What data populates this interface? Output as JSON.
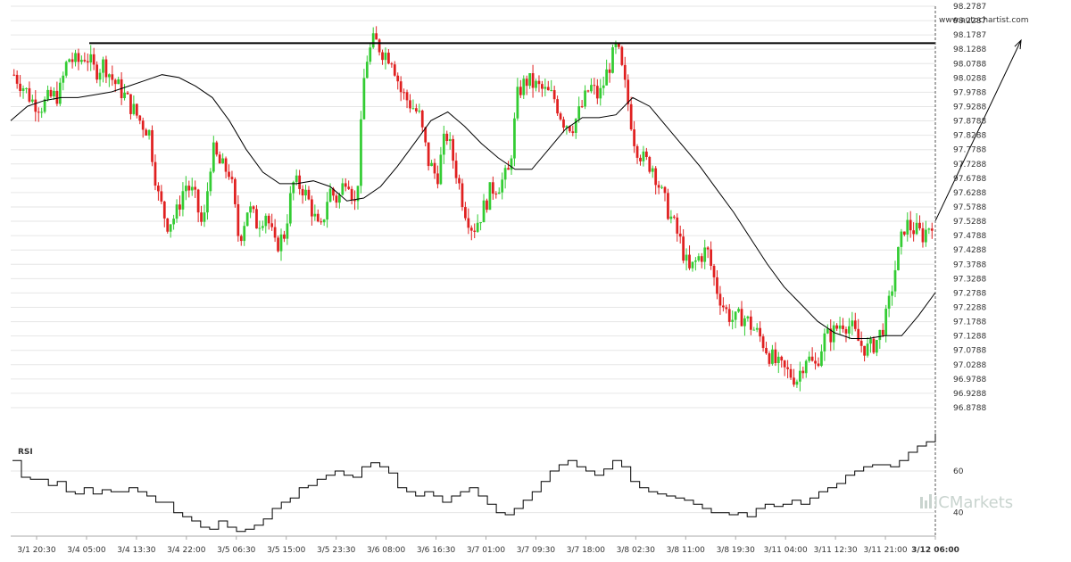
{
  "source_label": "www.autochartist.com",
  "watermark": {
    "text": "ICMarkets",
    "icon": "ic-logo-icon"
  },
  "colors": {
    "up": "#33cc33",
    "down": "#e02020",
    "line": "#000000",
    "grid": "#e6e6e6",
    "axis": "#aaaaaa"
  },
  "chart_data": [
    {
      "type": "candlestick",
      "title": "",
      "xlabel": "",
      "ylabel": "",
      "ylim": [
        96.8788,
        98.2787
      ],
      "y_ticks": [
        "98.2787",
        "98.2287",
        "98.1787",
        "98.1288",
        "98.0788",
        "98.0288",
        "97.9788",
        "97.9288",
        "97.8788",
        "97.8288",
        "97.7788",
        "97.7288",
        "97.6788",
        "97.6288",
        "97.5788",
        "97.5288",
        "97.4788",
        "97.4288",
        "97.3788",
        "97.3288",
        "97.2788",
        "97.2288",
        "97.1788",
        "97.1288",
        "97.0788",
        "97.0288",
        "96.9788",
        "96.9288",
        "96.8788"
      ],
      "x_tick_labels": [
        "3/1 20:30",
        "3/4 05:00",
        "3/4 13:30",
        "3/4 22:00",
        "3/5 06:30",
        "3/5 15:00",
        "3/5 23:30",
        "3/6 08:00",
        "3/6 16:30",
        "3/7 01:00",
        "3/7 09:30",
        "3/7 18:00",
        "3/8 02:30",
        "3/8 11:00",
        "3/8 19:30",
        "3/11 04:00",
        "3/11 12:30",
        "3/11 21:00",
        "3/12 06:00"
      ],
      "x_tick_current": "3/12 06:00",
      "close_path": [
        98.04,
        98.0,
        97.95,
        97.93,
        97.96,
        97.97,
        98.1,
        98.08,
        98.11,
        98.05,
        98.08,
        98.02,
        97.98,
        97.93,
        97.88,
        97.84,
        97.62,
        97.52,
        97.55,
        97.66,
        97.62,
        97.5,
        97.78,
        97.72,
        97.7,
        97.46,
        97.58,
        97.52,
        97.56,
        97.44,
        97.48,
        97.66,
        97.65,
        97.58,
        97.48,
        97.64,
        97.6,
        97.7,
        97.57,
        98.08,
        98.16,
        98.12,
        98.1,
        97.98,
        97.94,
        97.9,
        97.74,
        97.68,
        97.84,
        97.72,
        97.58,
        97.5,
        97.56,
        97.64,
        97.66,
        97.7,
        97.98,
        98.02,
        98.0,
        97.98,
        97.96,
        97.88,
        97.86,
        97.92,
        98.0,
        97.96,
        98.06,
        98.14,
        97.98,
        97.8,
        97.74,
        97.72,
        97.62,
        97.54,
        97.46,
        97.35,
        97.4,
        97.43,
        97.3,
        97.22,
        97.18,
        97.2,
        97.16,
        97.12,
        97.06,
        97.02,
        97.0,
        96.98,
        97.06,
        97.02,
        97.12,
        97.14,
        97.18,
        97.16,
        97.1,
        97.08,
        97.12,
        97.2,
        97.38,
        97.52,
        97.5,
        97.48,
        97.53
      ],
      "moving_average_path": [
        97.88,
        97.93,
        97.95,
        97.96,
        97.96,
        97.97,
        97.98,
        98.0,
        98.02,
        98.04,
        98.03,
        98.0,
        97.96,
        97.88,
        97.78,
        97.7,
        97.66,
        97.66,
        97.67,
        97.65,
        97.6,
        97.61,
        97.65,
        97.72,
        97.8,
        97.88,
        97.91,
        97.86,
        97.8,
        97.75,
        97.71,
        97.71,
        97.78,
        97.85,
        97.89,
        97.89,
        97.9,
        97.96,
        97.93,
        97.86,
        97.79,
        97.72,
        97.64,
        97.56,
        97.47,
        97.38,
        97.3,
        97.24,
        97.18,
        97.14,
        97.12,
        97.12,
        97.13,
        97.13,
        97.2,
        97.28
      ],
      "resistance_level": 98.15,
      "forecast_target": 98.16,
      "rsi": {
        "label": "RSI",
        "y_ticks": [
          "60",
          "40"
        ],
        "ylim": [
          30,
          75
        ],
        "path": [
          65,
          57,
          56,
          56,
          53,
          55,
          50,
          49,
          52,
          49,
          51,
          50,
          50,
          52,
          50,
          48,
          45,
          45,
          40,
          38,
          36,
          33,
          32,
          36,
          33,
          31,
          32,
          34,
          37,
          42,
          45,
          47,
          52,
          53,
          56,
          58,
          60,
          58,
          57,
          62,
          64,
          62,
          59,
          52,
          50,
          48,
          50,
          48,
          45,
          48,
          50,
          52,
          48,
          44,
          40,
          39,
          42,
          46,
          50,
          55,
          60,
          63,
          65,
          62,
          60,
          58,
          61,
          65,
          62,
          55,
          52,
          50,
          49,
          48,
          47,
          46,
          44,
          42,
          40,
          40,
          39,
          40,
          38,
          42,
          44,
          43,
          44,
          46,
          44,
          47,
          50,
          52,
          54,
          58,
          60,
          62,
          63,
          63,
          62,
          65,
          69,
          72,
          74,
          78
        ]
      }
    }
  ]
}
